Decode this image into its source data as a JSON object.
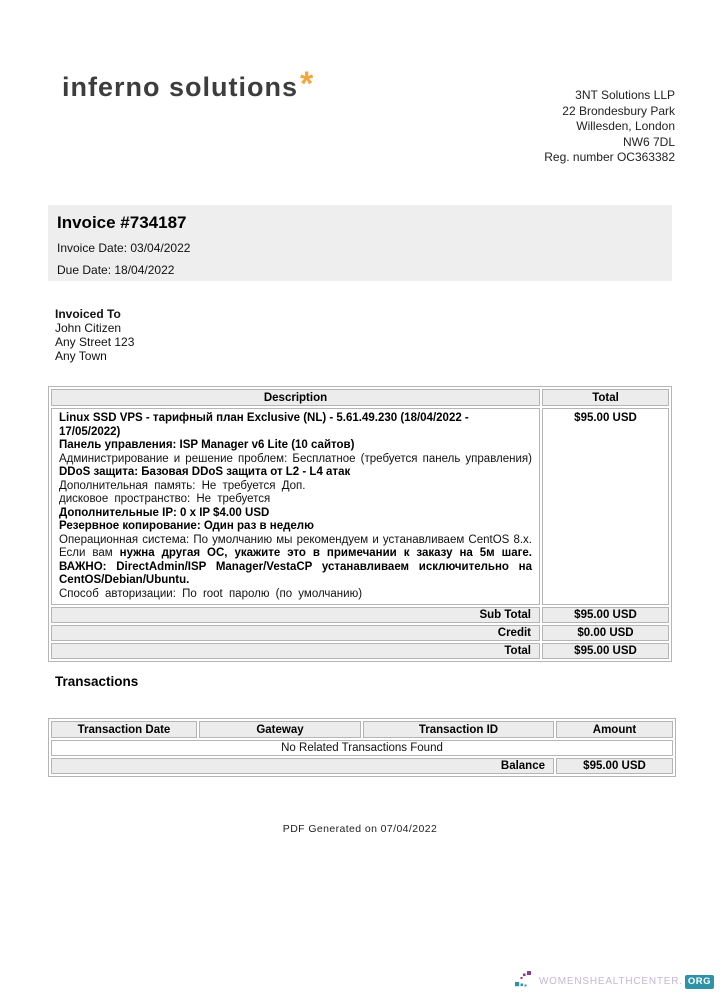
{
  "brand": {
    "logo_text": "inferno solutions",
    "logo_star": "*",
    "company_lines": [
      "3NT Solutions LLP",
      "22 Brondesbury Park",
      "Willesden, London",
      "NW6 7DL",
      "Reg. number OC363382"
    ]
  },
  "invoice_header": {
    "title": "Invoice #734187",
    "invoice_date": "Invoice Date: 03/04/2022",
    "due_date": "Due Date: 18/04/2022"
  },
  "invoiced_to": {
    "heading": "Invoiced To",
    "lines": [
      "John Citizen",
      "Any Street 123",
      "Any Town"
    ]
  },
  "invoice_table": {
    "headers": {
      "description": "Description",
      "total": "Total"
    },
    "item_total": "$95.00 USD",
    "description_lines": [
      {
        "segments": [
          {
            "text": "Linux SSD VPS - тарифный план Exclusive (NL) - 5.61.49.230 (18/04/2022 - 17/05/2022)",
            "bold": true
          }
        ]
      },
      {
        "segments": [
          {
            "text": "Панель управления: ISP Manager v6 Lite (10 сайтов)",
            "bold": true
          }
        ]
      },
      {
        "justify": true,
        "segments": [
          {
            "text": "Администрирование и решение проблем: Бесплатное (требуется панель управления) ",
            "bold": false
          },
          {
            "text": "DDoS защита: Базовая DDoS защита от L2 - L4 атак",
            "bold": true
          }
        ]
      },
      {
        "wide": true,
        "segments": [
          {
            "text": "Дополнительная память: Не требуется Доп.",
            "bold": false
          }
        ]
      },
      {
        "wide": true,
        "segments": [
          {
            "text": "дисковое пространство: Не требуется",
            "bold": false
          }
        ]
      },
      {
        "segments": [
          {
            "text": "Дополнительные IP: 0 x IP $4.00 USD",
            "bold": true
          }
        ]
      },
      {
        "segments": [
          {
            "text": "Резервное копирование: Один раз в неделю",
            "bold": true
          }
        ]
      },
      {
        "justify": true,
        "segments": [
          {
            "text": "Операционная система: По умолчанию мы рекомендуем и устанавливаем CentOS 8.x. Если вам ",
            "bold": false
          },
          {
            "text": "нужна другая ОС, укажите это в примечании к заказу на 5м шаге. ВАЖНО: DirectAdmin/ISP Manager/VestaCP устанавливаем исключительно на CentOS/Debian/Ubuntu.",
            "bold": true
          }
        ]
      },
      {
        "wide": true,
        "segments": [
          {
            "text": "Способ авторизации: По root паролю (по умолчанию)",
            "bold": false
          }
        ]
      }
    ],
    "summary": [
      {
        "label": "Sub Total",
        "value": "$95.00 USD"
      },
      {
        "label": "Credit",
        "value": "$0.00 USD"
      },
      {
        "label": "Total",
        "value": "$95.00 USD"
      }
    ]
  },
  "transactions": {
    "heading": "Transactions",
    "headers": [
      "Transaction Date",
      "Gateway",
      "Transaction ID",
      "Amount"
    ],
    "empty_message": "No Related Transactions Found",
    "balance_label": "Balance",
    "balance_value": "$95.00 USD"
  },
  "footer": {
    "generated": "PDF Generated on 07/04/2022"
  },
  "watermark": {
    "site": "WOMENSHEALTHCENTER.",
    "tld": "ORG"
  },
  "colors": {
    "logo_star": "#f2a73b",
    "panel_gray": "#eeeeee",
    "cell_gray": "#ececec",
    "border_gray": "#b5b5b5",
    "watermark_teal": "#2e93a9",
    "watermark_purple": "#8b3d96",
    "watermark_lavender": "#c4b7d7"
  }
}
